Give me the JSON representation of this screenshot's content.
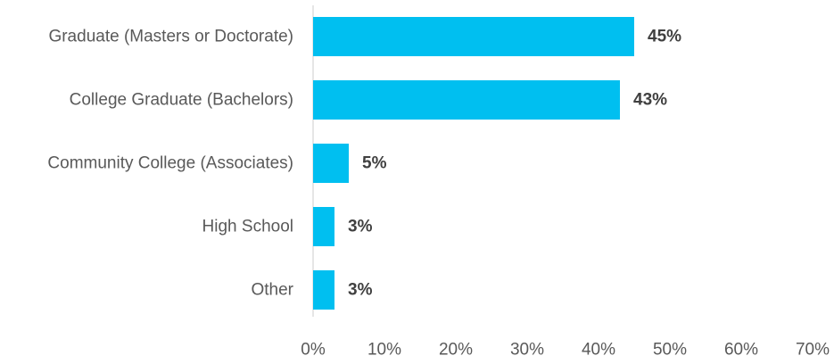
{
  "chart_data": {
    "type": "bar",
    "orientation": "horizontal",
    "categories": [
      "Graduate (Masters or Doctorate)",
      "College Graduate (Bachelors)",
      "Community College (Associates)",
      "High School",
      "Other"
    ],
    "values": [
      45,
      43,
      5,
      3,
      3
    ],
    "data_labels": [
      "45%",
      "43%",
      "5%",
      "3%",
      "3%"
    ],
    "x_ticks": [
      "0%",
      "10%",
      "20%",
      "30%",
      "40%",
      "50%",
      "60%",
      "70%"
    ],
    "xlim": [
      0,
      70
    ],
    "title": "",
    "xlabel": "",
    "ylabel": "",
    "grid": false,
    "legend": "none",
    "bar_color": "#00BFF0",
    "axis_color": "#D9D9D9"
  }
}
